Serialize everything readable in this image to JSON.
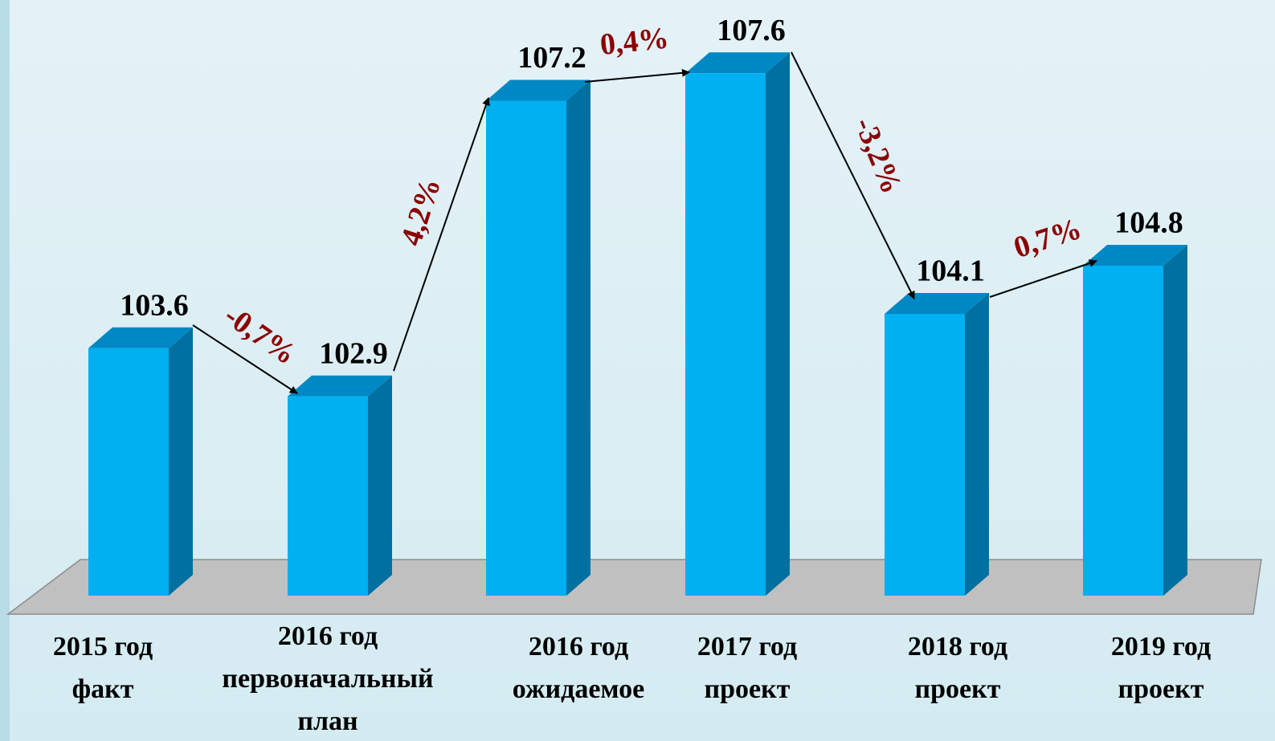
{
  "chart_data": {
    "type": "bar3d",
    "categories": [
      [
        "2015 год",
        "факт"
      ],
      [
        "2016 год",
        "первоначальный",
        "план"
      ],
      [
        "2016 год",
        "ожидаемое"
      ],
      [
        "2017 год",
        "проект"
      ],
      [
        "2018 год",
        "проект"
      ],
      [
        "2019 год",
        "проект"
      ]
    ],
    "values": [
      103.6,
      102.9,
      107.2,
      107.6,
      104.1,
      104.8
    ],
    "color": "#00b0f0",
    "ylim": [
      100,
      108
    ],
    "annotations": [
      "-0,7%",
      "4,2%",
      "0,4%",
      "-3,2%",
      "0,7%"
    ]
  }
}
